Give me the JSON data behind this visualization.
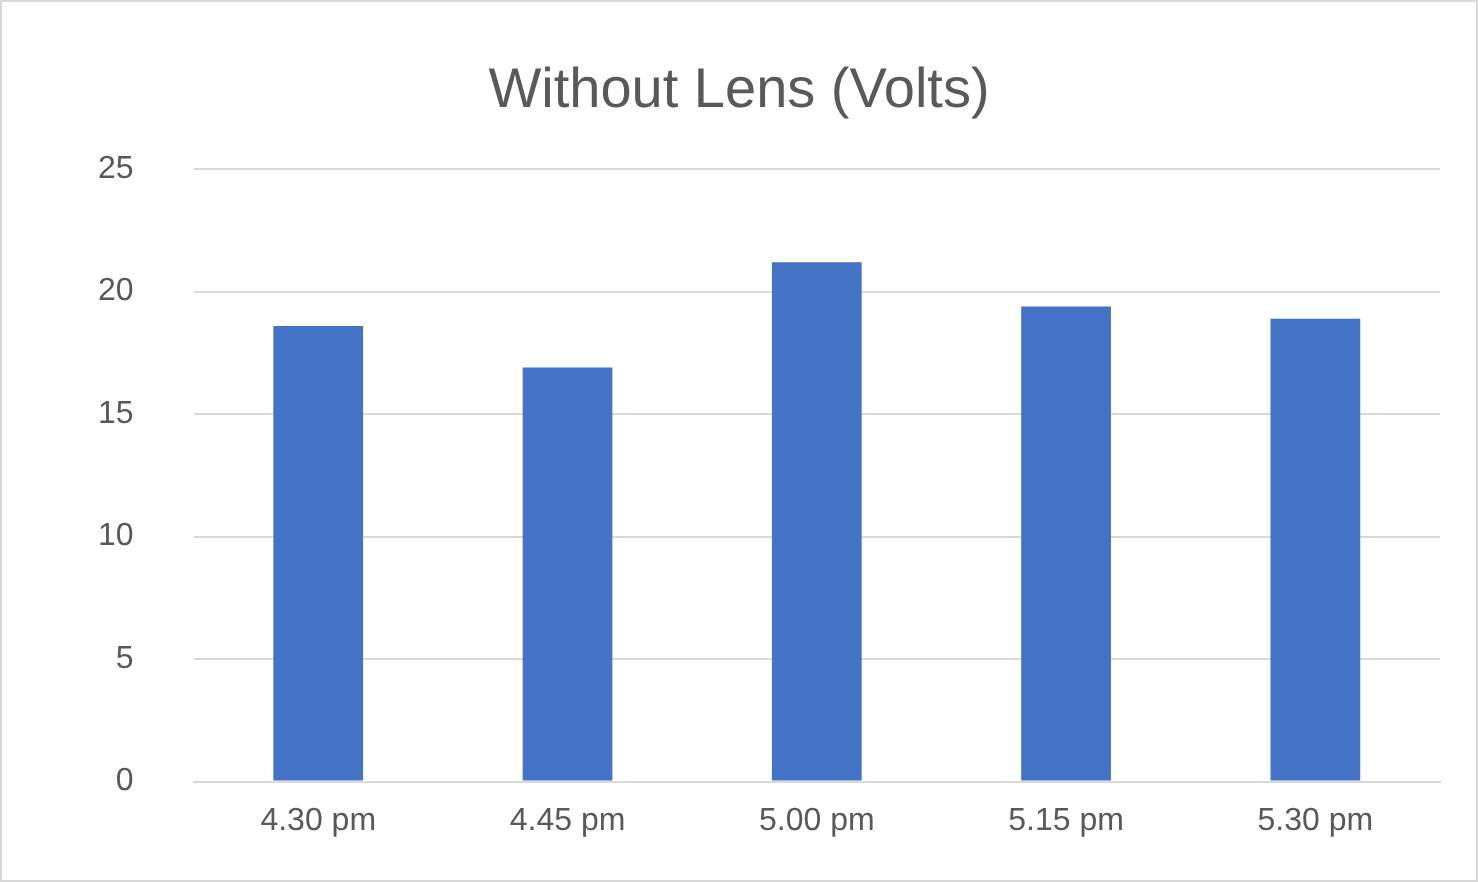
{
  "chart_data": {
    "type": "bar",
    "title": "Without Lens (Volts)",
    "categories": [
      "4.30 pm",
      "4.45 pm",
      "5.00 pm",
      "5.15 pm",
      "5.30 pm"
    ],
    "values": [
      18.6,
      16.9,
      21.2,
      19.4,
      18.9
    ],
    "color": "#4472c4",
    "ylim": [
      0,
      25
    ],
    "yticks": [
      0,
      5,
      10,
      15,
      20,
      25
    ],
    "grid": "y"
  }
}
